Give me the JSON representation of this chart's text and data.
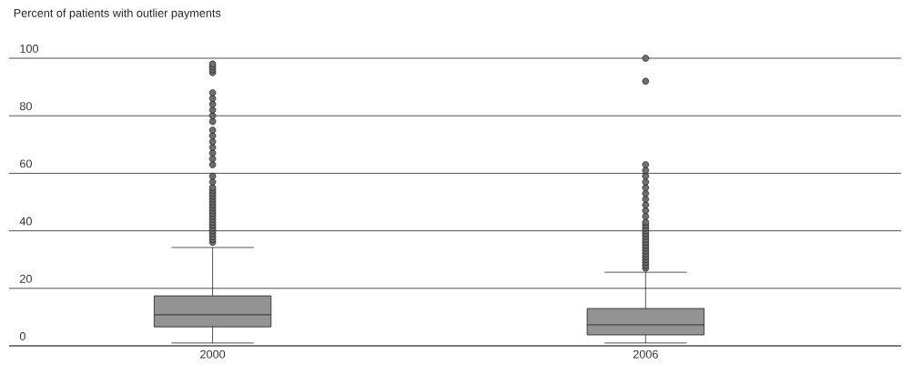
{
  "chart_data": {
    "type": "box",
    "ylabel": "Percent of patients with outlier payments",
    "categories": [
      "2000",
      "2006"
    ],
    "color": "#939393",
    "ylim": [
      0,
      100
    ],
    "yticks": [
      0,
      20,
      40,
      60,
      80,
      100
    ],
    "grid": "y",
    "boxes": [
      {
        "low": 1,
        "q1": 6.6,
        "median": 10.8,
        "q3": 17.4,
        "high": 34.2,
        "outliers": [
          36,
          37,
          38,
          39,
          40,
          41,
          42,
          43,
          44,
          45,
          46,
          47,
          48,
          49,
          50,
          51,
          52,
          53,
          54,
          55,
          57,
          59,
          63,
          65,
          67,
          69,
          71,
          73,
          75,
          78,
          80,
          82,
          84,
          86,
          88,
          95,
          96,
          97,
          98
        ]
      },
      {
        "low": 1,
        "q1": 3.8,
        "median": 7.3,
        "q3": 13,
        "high": 25.6,
        "outliers": [
          27,
          28,
          29,
          30,
          31,
          32,
          33,
          34,
          35,
          36,
          37,
          38,
          39,
          40,
          41,
          42,
          43,
          45,
          47,
          49,
          51,
          53,
          55,
          57,
          59,
          61,
          63,
          92,
          100
        ]
      }
    ]
  }
}
